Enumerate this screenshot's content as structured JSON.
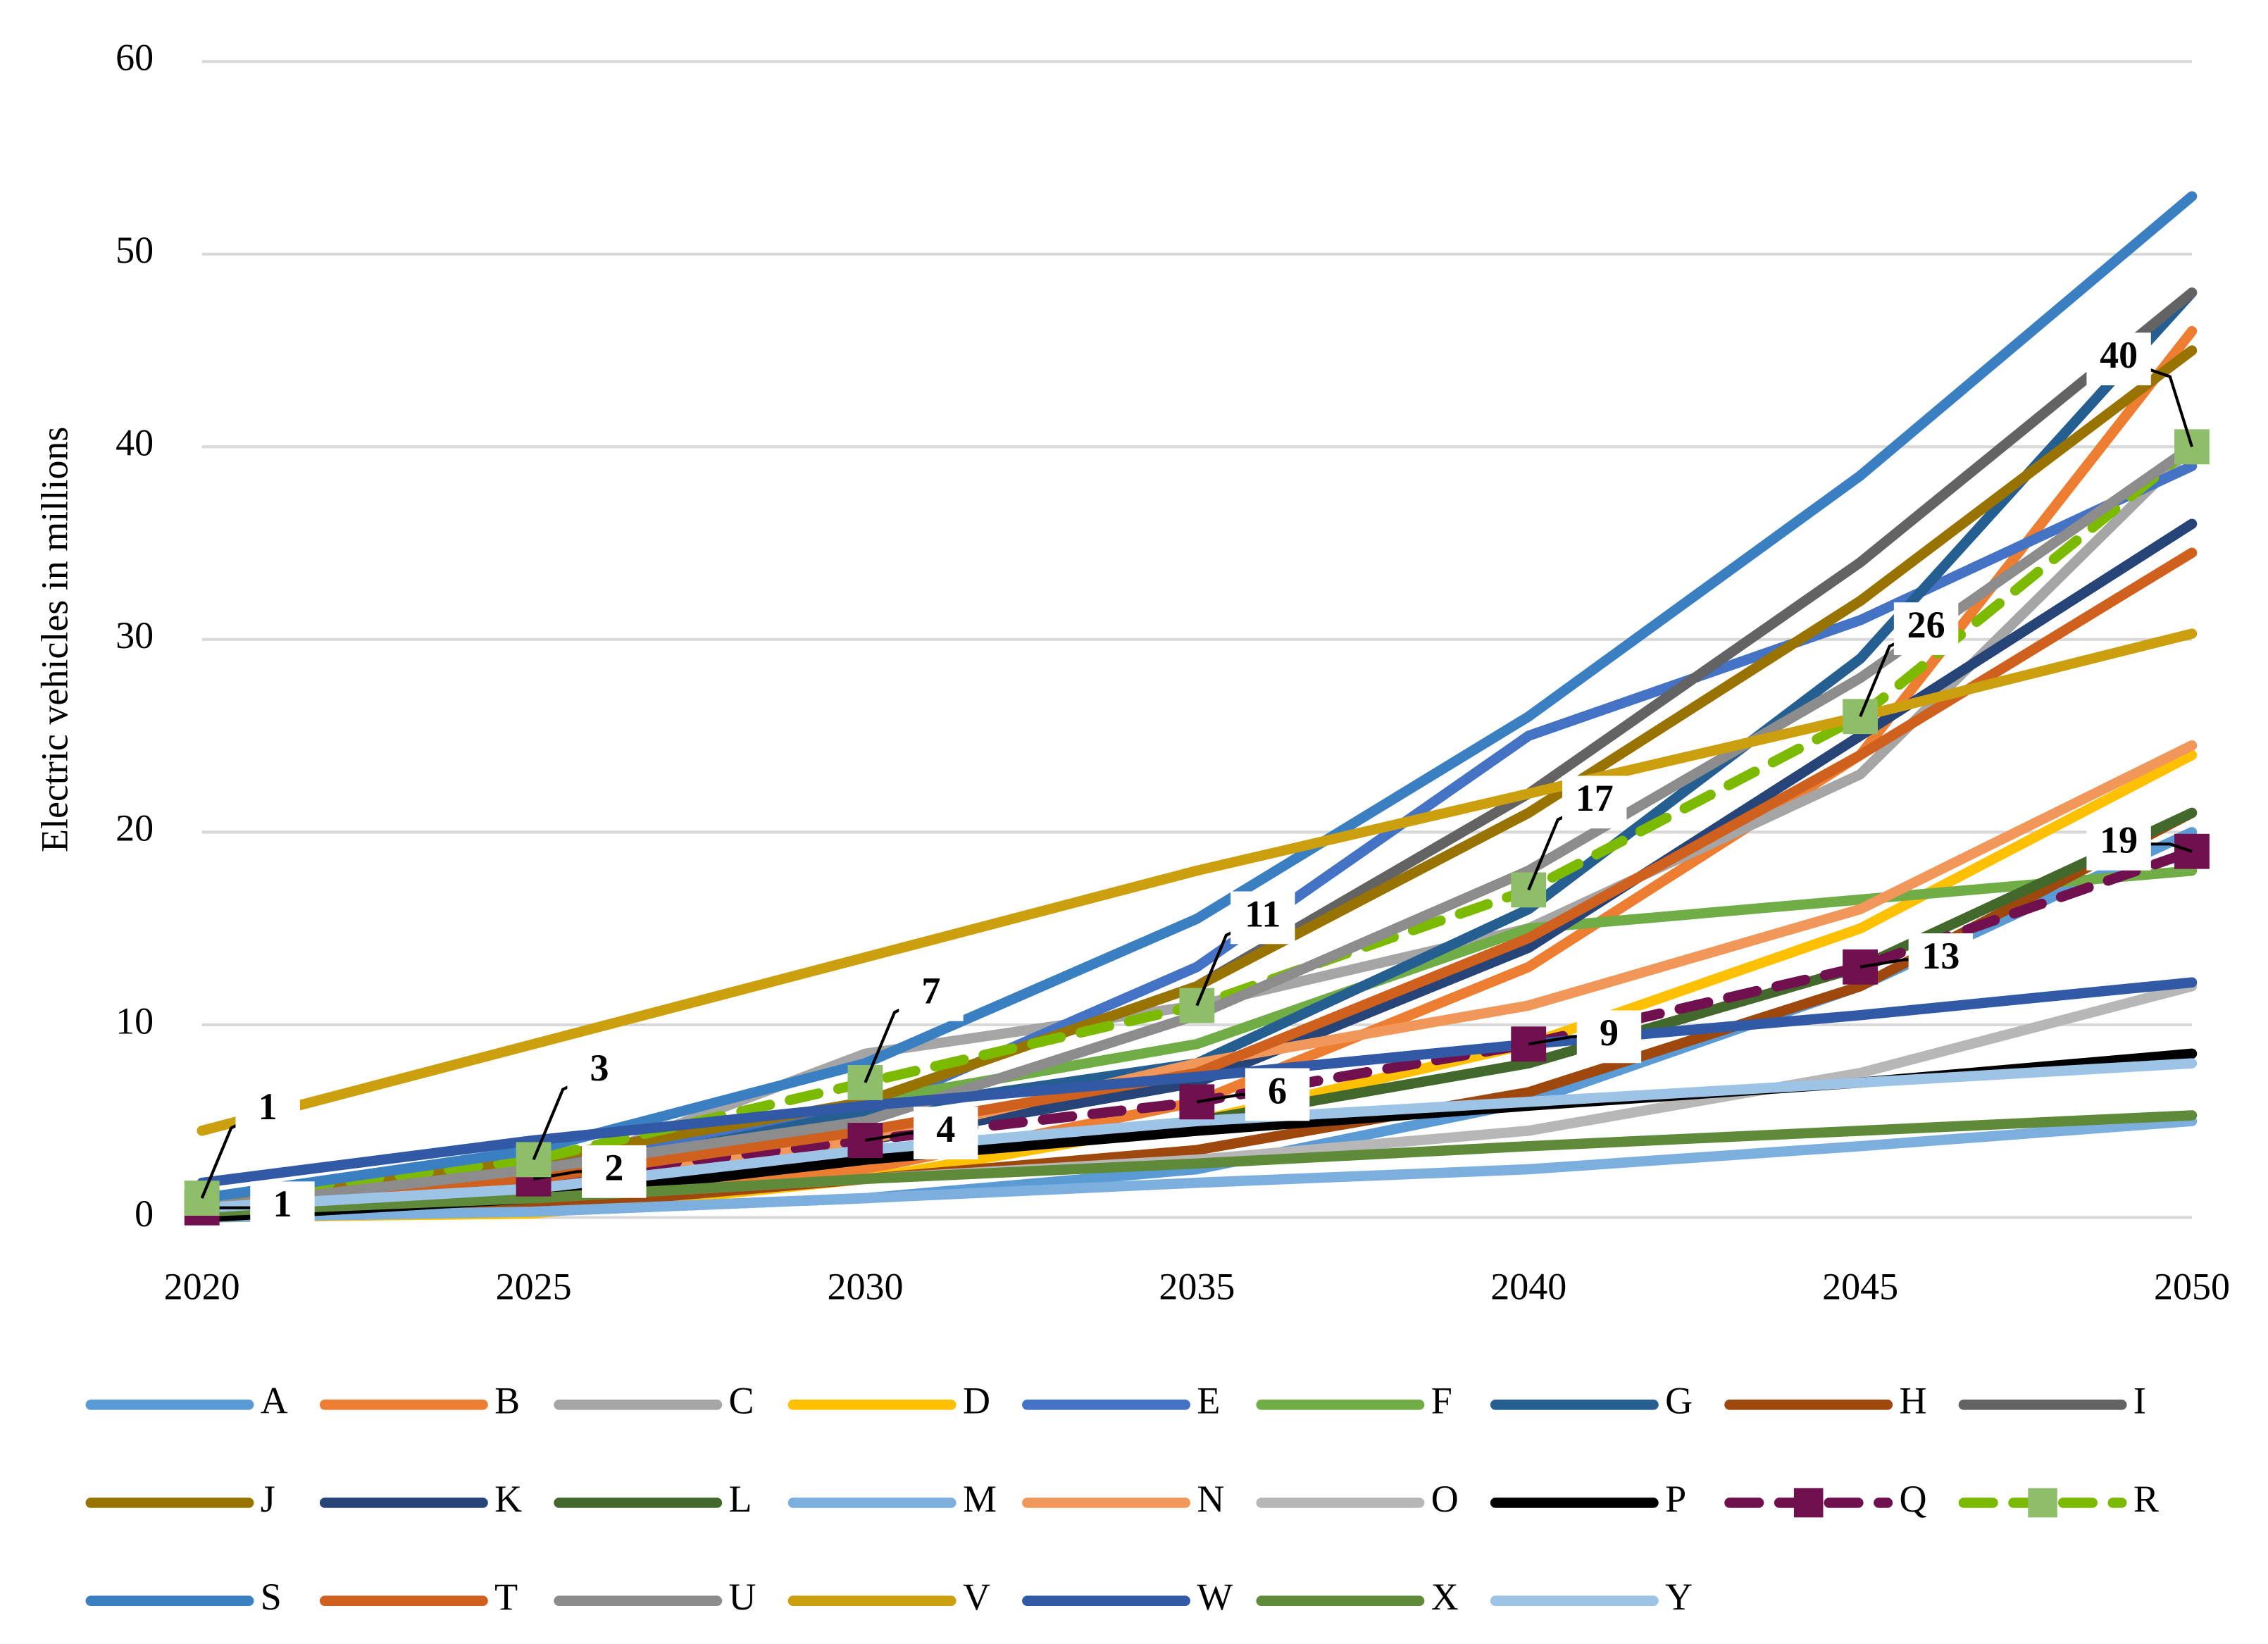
{
  "chart_data": {
    "type": "line",
    "y_label": "Electric vehicles in millions",
    "x": [
      2020,
      2025,
      2030,
      2035,
      2040,
      2045,
      2050
    ],
    "xlim": [
      2020,
      2050
    ],
    "xticks": [
      2020,
      2025,
      2030,
      2035,
      2040,
      2045,
      2050
    ],
    "ylim": [
      0,
      60
    ],
    "yticks": [
      0,
      10,
      20,
      30,
      40,
      50,
      60
    ],
    "grid": true,
    "legend": "bottom",
    "series": [
      {
        "name": "A",
        "color": "#5b9bd5",
        "values": [
          0,
          0.3,
          1,
          2.5,
          6,
          12,
          20
        ]
      },
      {
        "name": "B",
        "color": "#ed7d31",
        "values": [
          0.2,
          0.8,
          2.5,
          6,
          13,
          24,
          46
        ]
      },
      {
        "name": "C",
        "color": "#a5a5a5",
        "values": [
          0.3,
          2,
          8.5,
          11,
          15,
          23,
          40
        ]
      },
      {
        "name": "D",
        "color": "#ffc000",
        "values": [
          0,
          0.2,
          2,
          5,
          9,
          15,
          24
        ]
      },
      {
        "name": "E",
        "color": "#4472c4",
        "values": [
          0.5,
          3,
          5.5,
          13,
          25,
          31,
          39
        ]
      },
      {
        "name": "F",
        "color": "#70ad47",
        "values": [
          0.5,
          3,
          6,
          9,
          15,
          16.5,
          18
        ]
      },
      {
        "name": "G",
        "color": "#255e91",
        "values": [
          0.3,
          2,
          5.5,
          8,
          16,
          29,
          48
        ]
      },
      {
        "name": "H",
        "color": "#9e480e",
        "values": [
          0,
          0.5,
          2,
          3.5,
          6.5,
          12,
          21
        ]
      },
      {
        "name": "I",
        "color": "#636363",
        "values": [
          0.5,
          3,
          6,
          12,
          22,
          34,
          48
        ]
      },
      {
        "name": "J",
        "color": "#997300",
        "values": [
          0.5,
          3,
          6,
          12,
          21,
          32,
          45
        ]
      },
      {
        "name": "K",
        "color": "#264478",
        "values": [
          0.3,
          2,
          4,
          7,
          14,
          25,
          36
        ]
      },
      {
        "name": "L",
        "color": "#43682b",
        "values": [
          0.2,
          1,
          3,
          5,
          8,
          13,
          21
        ]
      },
      {
        "name": "M",
        "color": "#7cafdd",
        "values": [
          0,
          0.3,
          1,
          1.8,
          2.5,
          3.7,
          5
        ]
      },
      {
        "name": "N",
        "color": "#f1975a",
        "values": [
          0.3,
          2,
          4,
          8,
          11,
          16,
          24.5
        ]
      },
      {
        "name": "O",
        "color": "#b7b7b7",
        "values": [
          0.2,
          1,
          2,
          3,
          4.5,
          7.5,
          12
        ]
      },
      {
        "name": "P",
        "color": "#000000",
        "values": [
          0,
          1,
          3,
          4.5,
          5.8,
          7,
          8.5
        ]
      },
      {
        "name": "Q",
        "color": "#70104f",
        "dashed": true,
        "marker": "square",
        "values": [
          0.5,
          2,
          4,
          6,
          9,
          13,
          19
        ],
        "value_labels": [
          "1",
          "2",
          "4",
          "6",
          "9",
          "13",
          "19"
        ]
      },
      {
        "name": "R",
        "color": "#7cba00",
        "marker_color": "#8fbe6a",
        "dashed": true,
        "marker": "square",
        "values": [
          1,
          3,
          7,
          11,
          17,
          26,
          40
        ],
        "value_labels": [
          "1",
          "3",
          "7",
          "11",
          "17",
          "26",
          "40"
        ]
      },
      {
        "name": "S",
        "color": "#3a7fc1",
        "values": [
          1,
          3.5,
          8,
          15.5,
          26,
          38.5,
          53
        ]
      },
      {
        "name": "T",
        "color": "#d0601e",
        "values": [
          0.3,
          2,
          4.5,
          7.5,
          14.5,
          24,
          34.5
        ]
      },
      {
        "name": "U",
        "color": "#8c8c8c",
        "values": [
          0.5,
          2.5,
          5,
          10.5,
          18,
          28,
          40
        ]
      },
      {
        "name": "V",
        "color": "#cc9f0e",
        "values": [
          4.5,
          9,
          13.5,
          18,
          22,
          26,
          30.3
        ]
      },
      {
        "name": "W",
        "color": "#3159a6",
        "values": [
          1.8,
          4,
          5.8,
          7.3,
          9,
          10.5,
          12.2
        ]
      },
      {
        "name": "X",
        "color": "#5e8a3a",
        "values": [
          0.3,
          1,
          2,
          2.8,
          3.7,
          4.5,
          5.3
        ]
      },
      {
        "name": "Y",
        "color": "#9dc3e6",
        "values": [
          0.5,
          1.5,
          3.5,
          5,
          6,
          7,
          8
        ]
      }
    ]
  }
}
